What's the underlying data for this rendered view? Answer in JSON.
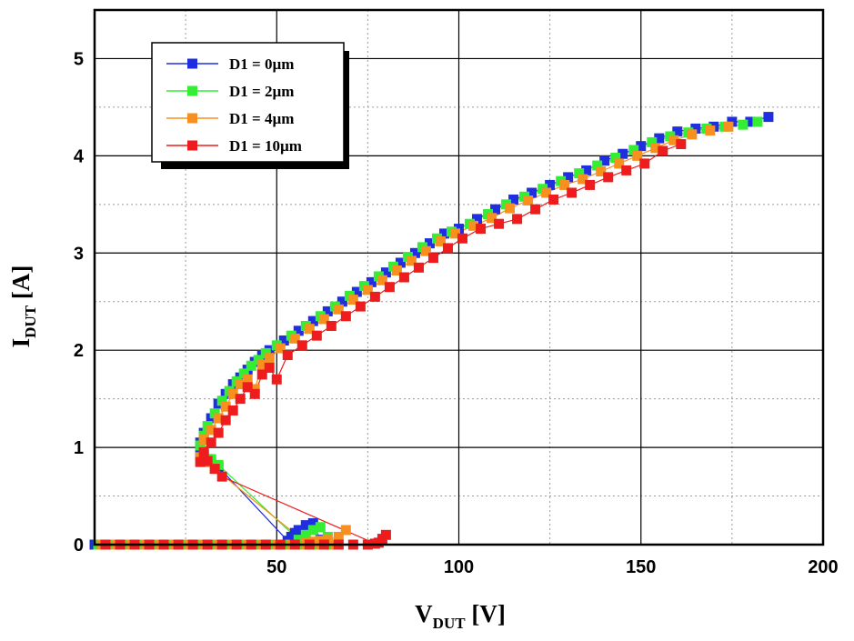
{
  "chart_data": {
    "type": "scatter",
    "title": "",
    "xlabel": {
      "main": "V",
      "sub": "DUT",
      "unit": " [V]"
    },
    "ylabel": {
      "main": "I",
      "sub": "DUT",
      "unit": " [A]"
    },
    "xlim": [
      0,
      200
    ],
    "ylim": [
      0,
      5.5
    ],
    "xticks": [
      50,
      100,
      150,
      200
    ],
    "yticks": [
      0,
      1,
      2,
      3,
      4,
      5
    ],
    "grid": {
      "major": true,
      "minor": true
    },
    "legend_position": "top-left",
    "series": [
      {
        "name": "D1 = 0µm",
        "color": "#1f2ee0",
        "x": [
          0,
          4,
          8,
          12,
          16,
          20,
          24,
          28,
          32,
          36,
          40,
          44,
          48,
          52,
          55,
          58,
          61,
          63,
          62,
          60,
          58,
          56,
          55,
          54,
          53,
          34,
          32,
          31,
          30,
          29,
          29,
          30,
          32,
          34,
          36,
          38,
          40,
          42,
          44,
          46,
          48,
          52,
          56,
          60,
          64,
          68,
          72,
          76,
          80,
          84,
          88,
          92,
          96,
          100,
          105,
          110,
          115,
          120,
          125,
          130,
          135,
          140,
          145,
          150,
          155,
          160,
          165,
          170,
          175,
          180,
          185
        ],
        "y": [
          0,
          0,
          0,
          0,
          0,
          0,
          0,
          0,
          0,
          0,
          0,
          0,
          0,
          0,
          0,
          0,
          0,
          0,
          0.05,
          0.22,
          0.2,
          0.15,
          0.12,
          0.08,
          0.04,
          0.8,
          0.85,
          0.88,
          0.92,
          0.95,
          1.05,
          1.15,
          1.3,
          1.45,
          1.55,
          1.65,
          1.72,
          1.8,
          1.88,
          1.95,
          2.0,
          2.1,
          2.2,
          2.3,
          2.4,
          2.5,
          2.6,
          2.7,
          2.8,
          2.9,
          3.0,
          3.1,
          3.2,
          3.25,
          3.35,
          3.45,
          3.55,
          3.62,
          3.7,
          3.78,
          3.85,
          3.95,
          4.02,
          4.1,
          4.18,
          4.25,
          4.28,
          4.3,
          4.35,
          4.35,
          4.4
        ]
      },
      {
        "name": "D1 = 2µm",
        "color": "#33ee33",
        "x": [
          1,
          5,
          9,
          13,
          17,
          21,
          25,
          29,
          33,
          37,
          41,
          45,
          49,
          53,
          57,
          60,
          63,
          65,
          64,
          62,
          60,
          58,
          56,
          34,
          32,
          30,
          29,
          30,
          31,
          33,
          35,
          37,
          39,
          41,
          43,
          45,
          47,
          50,
          54,
          58,
          62,
          66,
          70,
          74,
          78,
          82,
          86,
          90,
          94,
          98,
          103,
          108,
          113,
          118,
          123,
          128,
          133,
          138,
          143,
          148,
          153,
          158,
          163,
          168,
          173,
          178,
          182
        ],
        "y": [
          0,
          0,
          0,
          0,
          0,
          0,
          0,
          0,
          0,
          0,
          0,
          0,
          0,
          0,
          0,
          0,
          0,
          0,
          0.08,
          0.18,
          0.15,
          0.1,
          0.05,
          0.82,
          0.88,
          0.93,
          1.02,
          1.12,
          1.22,
          1.35,
          1.48,
          1.58,
          1.68,
          1.76,
          1.84,
          1.9,
          1.97,
          2.05,
          2.15,
          2.25,
          2.35,
          2.45,
          2.56,
          2.66,
          2.76,
          2.86,
          2.96,
          3.06,
          3.15,
          3.22,
          3.3,
          3.4,
          3.5,
          3.58,
          3.66,
          3.74,
          3.82,
          3.9,
          3.98,
          4.06,
          4.14,
          4.2,
          4.24,
          4.28,
          4.3,
          4.32,
          4.35
        ]
      },
      {
        "name": "D1 = 4µm",
        "color": "#f7901e",
        "x": [
          2,
          6,
          10,
          14,
          18,
          22,
          26,
          30,
          34,
          38,
          42,
          46,
          50,
          54,
          58,
          62,
          66,
          69,
          67,
          64,
          62,
          60,
          58,
          33,
          31,
          29,
          30,
          32,
          34,
          36,
          38,
          40,
          42,
          44,
          46,
          48,
          51,
          55,
          59,
          63,
          67,
          71,
          75,
          79,
          83,
          87,
          91,
          95,
          99,
          104,
          109,
          114,
          119,
          124,
          129,
          134,
          139,
          144,
          149,
          154,
          159,
          164,
          169,
          174
        ],
        "y": [
          0,
          0,
          0,
          0,
          0,
          0,
          0,
          0,
          0,
          0,
          0,
          0,
          0,
          0,
          0,
          0,
          0,
          0.15,
          0.08,
          0.05,
          0.04,
          0.03,
          0.02,
          0.78,
          0.85,
          0.9,
          1.08,
          1.18,
          1.3,
          1.42,
          1.55,
          1.65,
          1.7,
          1.6,
          1.85,
          1.92,
          2.02,
          2.12,
          2.22,
          2.32,
          2.42,
          2.52,
          2.62,
          2.72,
          2.82,
          2.92,
          3.02,
          3.12,
          3.2,
          3.28,
          3.36,
          3.46,
          3.54,
          3.62,
          3.7,
          3.76,
          3.84,
          3.92,
          4.0,
          4.08,
          4.16,
          4.22,
          4.26,
          4.3
        ]
      },
      {
        "name": "D1 = 10µm",
        "color": "#ee1c1c",
        "x": [
          3,
          7,
          11,
          15,
          19,
          23,
          27,
          31,
          35,
          39,
          43,
          47,
          51,
          55,
          59,
          63,
          67,
          71,
          75,
          78,
          80,
          79,
          77,
          35,
          33,
          31,
          29,
          30,
          32,
          34,
          36,
          38,
          40,
          42,
          44,
          46,
          48,
          50,
          53,
          57,
          61,
          65,
          69,
          73,
          77,
          81,
          85,
          89,
          93,
          97,
          101,
          106,
          111,
          116,
          121,
          126,
          131,
          136,
          141,
          146,
          151,
          156,
          161
        ],
        "y": [
          0,
          0,
          0,
          0,
          0,
          0,
          0,
          0,
          0,
          0,
          0,
          0,
          0,
          0,
          0,
          0,
          0,
          0,
          0,
          0.02,
          0.1,
          0.06,
          0.01,
          0.7,
          0.78,
          0.86,
          0.85,
          0.95,
          1.05,
          1.15,
          1.28,
          1.38,
          1.5,
          1.62,
          1.55,
          1.75,
          1.82,
          1.7,
          1.95,
          2.05,
          2.15,
          2.25,
          2.35,
          2.45,
          2.55,
          2.65,
          2.75,
          2.85,
          2.95,
          3.05,
          3.15,
          3.25,
          3.3,
          3.35,
          3.45,
          3.55,
          3.62,
          3.7,
          3.78,
          3.85,
          3.92,
          4.05,
          4.12
        ]
      }
    ]
  }
}
